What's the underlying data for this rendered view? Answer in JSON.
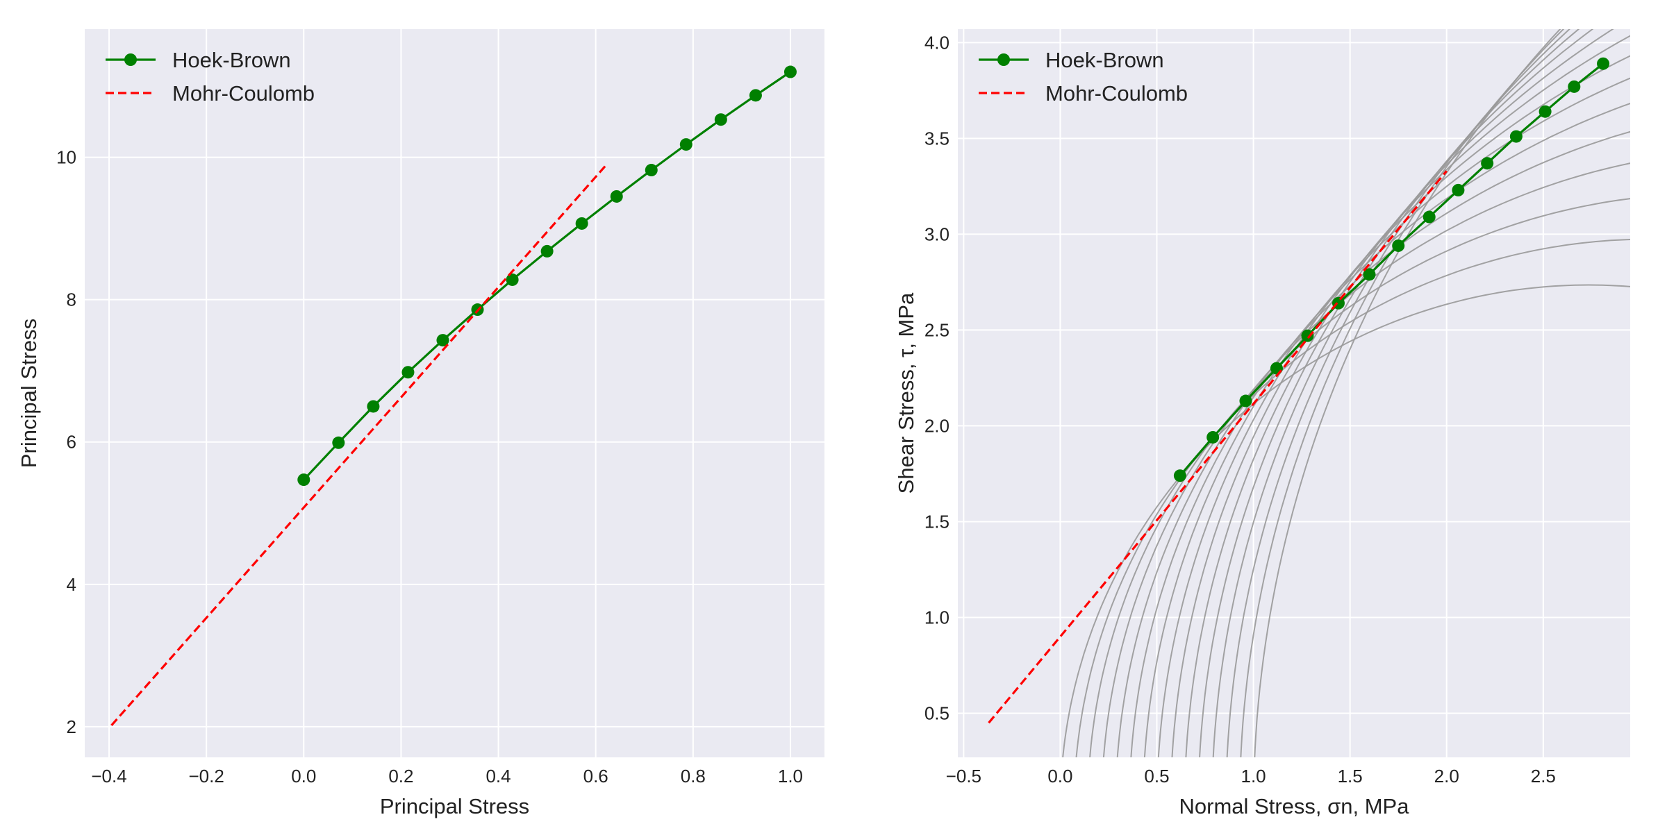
{
  "chart_data": [
    {
      "type": "line",
      "title": "",
      "xlabel": "Principal Stress",
      "ylabel": "Principal Stress",
      "xlim": [
        -0.45,
        1.07
      ],
      "ylim": [
        1.57,
        11.8
      ],
      "xticks": [
        -0.4,
        -0.2,
        0.0,
        0.2,
        0.4,
        0.6,
        0.8,
        1.0
      ],
      "xtick_labels": [
        "−0.4",
        "−0.2",
        "0.0",
        "0.2",
        "0.4",
        "0.6",
        "0.8",
        "1.0"
      ],
      "yticks": [
        2,
        4,
        6,
        8,
        10
      ],
      "ytick_labels": [
        "2",
        "4",
        "6",
        "8",
        "10"
      ],
      "grid": true,
      "legend": "top-left",
      "series": [
        {
          "name": "Hoek-Brown",
          "color": "#008000",
          "style": "solid-with-markers",
          "x": [
            0.0,
            0.0714,
            0.1429,
            0.2143,
            0.2857,
            0.3571,
            0.4286,
            0.5,
            0.5714,
            0.6429,
            0.7143,
            0.7857,
            0.8571,
            0.9286,
            1.0
          ],
          "y": [
            5.47,
            5.99,
            6.5,
            6.98,
            7.43,
            7.86,
            8.28,
            8.68,
            9.07,
            9.45,
            9.82,
            10.18,
            10.53,
            10.87,
            11.2
          ]
        },
        {
          "name": "Mohr-Coulomb",
          "color": "#ff0000",
          "style": "dashed",
          "x": [
            -0.395,
            0.62
          ],
          "y": [
            2.02,
            9.88
          ]
        }
      ]
    },
    {
      "type": "line",
      "title": "",
      "xlabel": "Normal Stress, σn, MPa",
      "ylabel": "Shear Stress, τ, MPa",
      "xlim": [
        -0.53,
        2.95
      ],
      "ylim": [
        0.27,
        4.07
      ],
      "xticks": [
        -0.5,
        0.0,
        0.5,
        1.0,
        1.5,
        2.0,
        2.5
      ],
      "xtick_labels": [
        "−0.5",
        "0.0",
        "0.5",
        "1.0",
        "1.5",
        "2.0",
        "2.5"
      ],
      "yticks": [
        0.5,
        1.0,
        1.5,
        2.0,
        2.5,
        3.0,
        3.5,
        4.0
      ],
      "ytick_labels": [
        "0.5",
        "1.0",
        "1.5",
        "2.0",
        "2.5",
        "3.0",
        "3.5",
        "4.0"
      ],
      "grid": true,
      "legend": "top-left",
      "series": [
        {
          "name": "Hoek-Brown",
          "color": "#008000",
          "style": "solid-with-markers",
          "x": [
            0.62,
            0.79,
            0.96,
            1.12,
            1.28,
            1.44,
            1.6,
            1.75,
            1.91,
            2.06,
            2.21,
            2.36,
            2.51,
            2.66,
            2.81
          ],
          "y": [
            1.74,
            1.94,
            2.13,
            2.3,
            2.47,
            2.64,
            2.79,
            2.94,
            3.09,
            3.23,
            3.37,
            3.51,
            3.64,
            3.77,
            3.89
          ]
        },
        {
          "name": "Mohr-Coulomb",
          "color": "#ff0000",
          "style": "dashed",
          "x": [
            -0.37,
            2.0
          ],
          "y": [
            0.45,
            3.33
          ]
        }
      ],
      "mohr_circles": {
        "color": "#999999",
        "centers": [
          2.735,
          3.045,
          3.353,
          3.658,
          3.963,
          4.268,
          4.573,
          4.878,
          5.183,
          5.488,
          5.793,
          6.098,
          6.403,
          6.708,
          7.013
        ],
        "radii": [
          2.735,
          2.974,
          3.211,
          3.444,
          3.677,
          3.911,
          4.145,
          4.378,
          4.612,
          4.845,
          5.079,
          5.313,
          5.546,
          5.78,
          6.013
        ]
      }
    }
  ]
}
